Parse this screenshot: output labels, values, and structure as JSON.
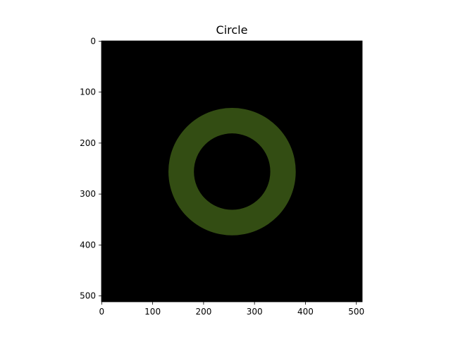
{
  "chart_data": {
    "type": "heatmap",
    "title": "Circle",
    "xlabel": "",
    "ylabel": "",
    "image": {
      "width": 512,
      "height": 512,
      "background_color": "#000000",
      "origin": "upper"
    },
    "xlim": [
      -0.5,
      511.5
    ],
    "ylim": [
      511.5,
      -0.5
    ],
    "x_ticks": [
      0,
      100,
      200,
      300,
      400,
      500
    ],
    "y_ticks": [
      0,
      100,
      200,
      300,
      400,
      500
    ],
    "shapes": [
      {
        "type": "ring",
        "center": [
          256,
          256
        ],
        "outer_radius": 125,
        "inner_radius": 75,
        "color": "#334d13"
      }
    ],
    "grid": false,
    "legend": "none"
  }
}
